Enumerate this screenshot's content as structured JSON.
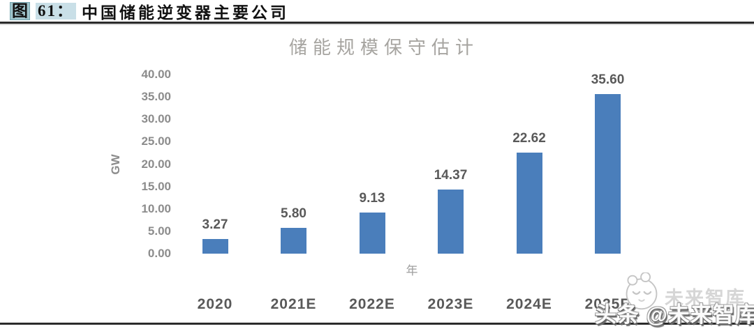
{
  "figure_header": {
    "tag": "图",
    "number": "61：",
    "title": "中国储能逆变器主要公司"
  },
  "chart_data": {
    "type": "bar",
    "title": "储能规模保守估计",
    "categories": [
      "2020",
      "2021E",
      "2022E",
      "2023E",
      "2024E",
      "2025E"
    ],
    "values": [
      3.27,
      5.8,
      9.13,
      14.37,
      22.62,
      35.6
    ],
    "value_labels": [
      "3.27",
      "5.80",
      "9.13",
      "14.37",
      "22.62",
      "35.60"
    ],
    "xlabel": "年",
    "ylabel": "GW",
    "ylim": [
      0,
      40
    ],
    "yticks": [
      40,
      35,
      30,
      25,
      20,
      15,
      10,
      5,
      0
    ],
    "ytick_labels": [
      "40.00",
      "35.00",
      "30.00",
      "25.00",
      "20.00",
      "15.00",
      "10.00",
      "5.00",
      "0.00"
    ],
    "grid": false,
    "legend": "none",
    "bar_color": "#4a7ebb"
  },
  "watermark": {
    "text": "头条 @未来智库",
    "ghost_text": "未来智库",
    "logo": "paw-face-logo"
  },
  "colors": {
    "bar": "#4a7ebb",
    "rule": "#2b2b2b",
    "tag_highlight": "#9fc4cb",
    "number_highlight": "#c9dfe7",
    "axis_text": "#8c8c8c",
    "label_text": "#595959",
    "title_text": "#a6a4a0"
  }
}
